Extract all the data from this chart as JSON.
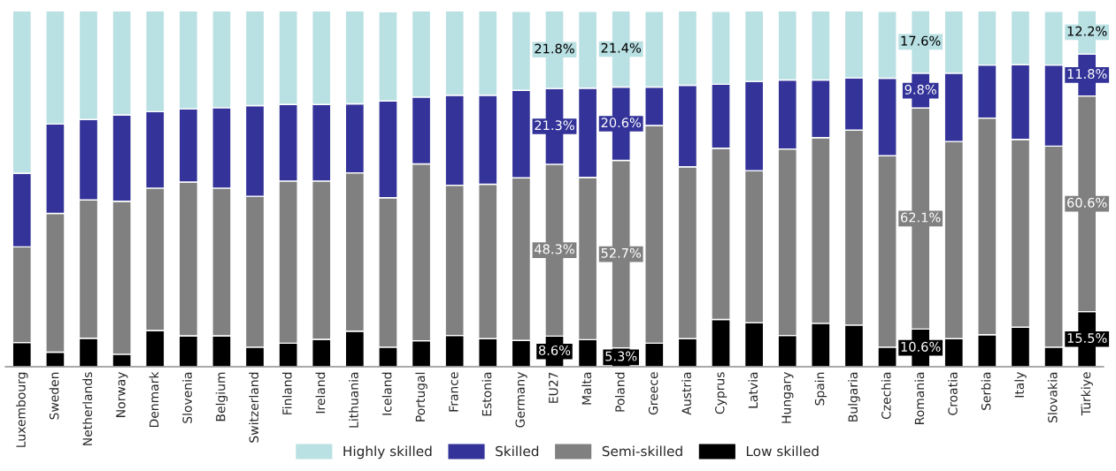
{
  "chart_data": {
    "type": "bar",
    "stacked": true,
    "legend": "bottom",
    "ylim": [
      0,
      100.1
    ],
    "tick_labels": "x",
    "categories": [
      "Luxembourg",
      "Sweden",
      "Netherlands",
      "Norway",
      "Denmark",
      "Slovenia",
      "Belgium",
      "Switzerland",
      "Finland",
      "Ireland",
      "Lithuania",
      "Iceland",
      "Portugal",
      "France",
      "Estonia",
      "Germany",
      "EU27",
      "Malta",
      "Poland",
      "Greece",
      "Austria",
      "Cyprus",
      "Latvia",
      "Hungary",
      "Spain",
      "Bulgaria",
      "Czechia",
      "Romania",
      "Croatia",
      "Serbia",
      "Italy",
      "Slovakia",
      "Türkiye"
    ],
    "series": [
      {
        "name": "Low skilled",
        "color": "#000000",
        "values": [
          6.8,
          4.1,
          8.0,
          3.5,
          10.2,
          8.7,
          8.7,
          5.5,
          6.6,
          7.7,
          10.0,
          5.5,
          7.3,
          8.8,
          7.9,
          7.4,
          8.6,
          7.6,
          5.3,
          6.6,
          7.9,
          13.3,
          12.4,
          8.8,
          12.2,
          11.7,
          5.5,
          10.6,
          7.9,
          9.0,
          11.1,
          5.5,
          15.5
        ],
        "value_labels": [
          null,
          null,
          null,
          null,
          null,
          null,
          null,
          null,
          null,
          null,
          null,
          null,
          null,
          null,
          null,
          null,
          "8.6%",
          null,
          "5.3%",
          null,
          null,
          null,
          null,
          null,
          null,
          null,
          null,
          "10.6%",
          null,
          null,
          null,
          null,
          "15.5%"
        ]
      },
      {
        "name": "Semi-skilled",
        "color": "#808080",
        "values": [
          26.9,
          39.0,
          38.9,
          43.0,
          40.0,
          43.2,
          41.5,
          42.4,
          45.6,
          44.5,
          44.5,
          42.0,
          49.7,
          42.2,
          43.4,
          45.7,
          48.3,
          45.6,
          52.7,
          61.2,
          48.3,
          48.1,
          42.7,
          52.4,
          52.2,
          54.8,
          53.8,
          62.1,
          55.4,
          60.9,
          52.8,
          56.5,
          60.6
        ],
        "value_labels": [
          null,
          null,
          null,
          null,
          null,
          null,
          null,
          null,
          null,
          null,
          null,
          null,
          null,
          null,
          null,
          null,
          "48.3%",
          null,
          "52.7%",
          null,
          null,
          null,
          null,
          null,
          null,
          null,
          null,
          "62.1%",
          null,
          null,
          null,
          null,
          "60.6%"
        ]
      },
      {
        "name": "Skilled",
        "color": "#333399",
        "values": [
          20.7,
          25.1,
          22.6,
          24.3,
          21.5,
          20.6,
          22.6,
          25.5,
          21.5,
          21.5,
          19.4,
          27.2,
          18.8,
          25.3,
          25.0,
          24.6,
          21.3,
          25.1,
          20.6,
          10.8,
          22.9,
          18.0,
          25.1,
          19.4,
          16.2,
          14.7,
          21.8,
          9.8,
          19.2,
          14.9,
          21.0,
          22.8,
          11.8
        ],
        "value_labels": [
          null,
          null,
          null,
          null,
          null,
          null,
          null,
          null,
          null,
          null,
          null,
          null,
          null,
          null,
          null,
          null,
          "21.3%",
          null,
          "20.6%",
          null,
          null,
          null,
          null,
          null,
          null,
          null,
          null,
          "9.8%",
          null,
          null,
          null,
          null,
          "11.8%"
        ]
      },
      {
        "name": "Highly skilled",
        "color": "#b9e0e3",
        "values": [
          45.6,
          31.8,
          30.5,
          29.2,
          28.3,
          27.5,
          27.2,
          26.6,
          26.3,
          26.3,
          26.1,
          25.1,
          24.2,
          23.7,
          23.7,
          22.2,
          21.8,
          21.6,
          21.4,
          21.3,
          20.9,
          20.5,
          19.8,
          19.4,
          19.4,
          18.8,
          18.8,
          17.6,
          17.5,
          15.2,
          15.1,
          15.1,
          12.2
        ],
        "value_labels": [
          null,
          null,
          null,
          null,
          null,
          null,
          null,
          null,
          null,
          null,
          null,
          null,
          null,
          null,
          null,
          null,
          "21.8%",
          null,
          "21.4%",
          null,
          null,
          null,
          null,
          null,
          null,
          null,
          null,
          "17.6%",
          null,
          null,
          null,
          null,
          "12.2%"
        ]
      }
    ]
  }
}
